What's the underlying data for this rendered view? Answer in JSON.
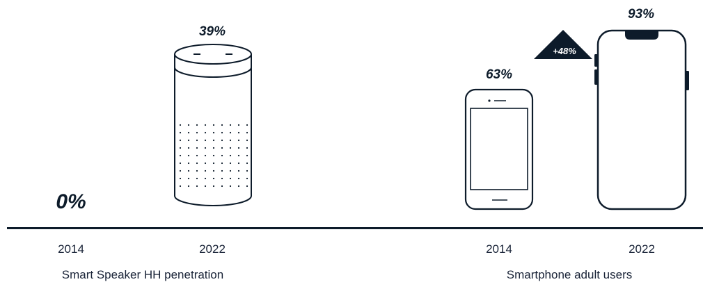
{
  "chart_data": [
    {
      "type": "bar",
      "title": "",
      "categories": [
        "2014",
        "2022"
      ],
      "values": [
        0,
        39
      ],
      "value_labels": [
        "0%",
        "39%"
      ],
      "xlabel": "Smart Speaker HH penetration",
      "ylabel": "",
      "unit": "%"
    },
    {
      "type": "bar",
      "title": "",
      "categories": [
        "2014",
        "2022"
      ],
      "values": [
        63,
        93
      ],
      "value_labels": [
        "63%",
        "93%"
      ],
      "xlabel": "Smartphone adult users",
      "ylabel": "",
      "unit": "%",
      "annotation": "+48%"
    }
  ],
  "colors": {
    "ink": "#0d1b2a",
    "background": "#ffffff"
  },
  "icons": [
    "smart-speaker-icon",
    "mobile-phone-icon",
    "smartphone-icon"
  ]
}
